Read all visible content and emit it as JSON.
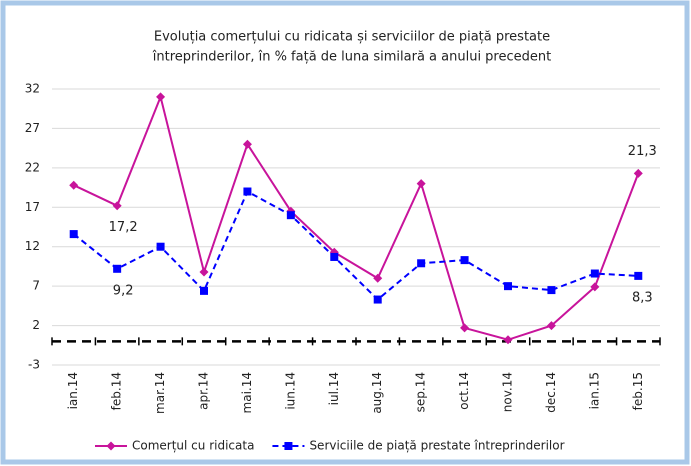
{
  "chart_data": {
    "type": "line",
    "title": [
      "Evoluția comerțului cu  ridicata și serviciilor de piață prestate",
      "întreprinderilor, în % față de luna similară a anului precedent"
    ],
    "categories": [
      "ian.14",
      "feb.14",
      "mar.14",
      "apr.14",
      "mai.14",
      "iun.14",
      "iul.14",
      "aug.14",
      "sep.14",
      "oct.14",
      "nov.14",
      "dec.14",
      "ian.15",
      "feb.15"
    ],
    "series": [
      {
        "name": "Comerțul cu ridicata",
        "color": "#c8149b",
        "marker": "diamond",
        "dash": false,
        "values": [
          19.8,
          17.2,
          31,
          8.8,
          25,
          16.5,
          11.3,
          8,
          20,
          1.7,
          0.2,
          2,
          6.9,
          21.3
        ],
        "value_labels": [
          null,
          "17,2",
          null,
          null,
          null,
          null,
          null,
          null,
          null,
          null,
          null,
          null,
          null,
          "21,3"
        ]
      },
      {
        "name": "Serviciile de piață prestate întreprinderilor",
        "color": "#0000ff",
        "marker": "square",
        "dash": true,
        "values": [
          13.6,
          9.2,
          12,
          6.4,
          19,
          16,
          10.7,
          5.3,
          9.9,
          10.3,
          7,
          6.5,
          8.6,
          8.3
        ],
        "value_labels": [
          null,
          "9,2",
          null,
          null,
          null,
          null,
          null,
          null,
          null,
          null,
          null,
          null,
          null,
          "8,3"
        ]
      }
    ],
    "ylim": [
      -3,
      32
    ],
    "yticks": [
      -3,
      2,
      7,
      12,
      17,
      22,
      27,
      32
    ],
    "grid": true,
    "legend": "bottom"
  }
}
